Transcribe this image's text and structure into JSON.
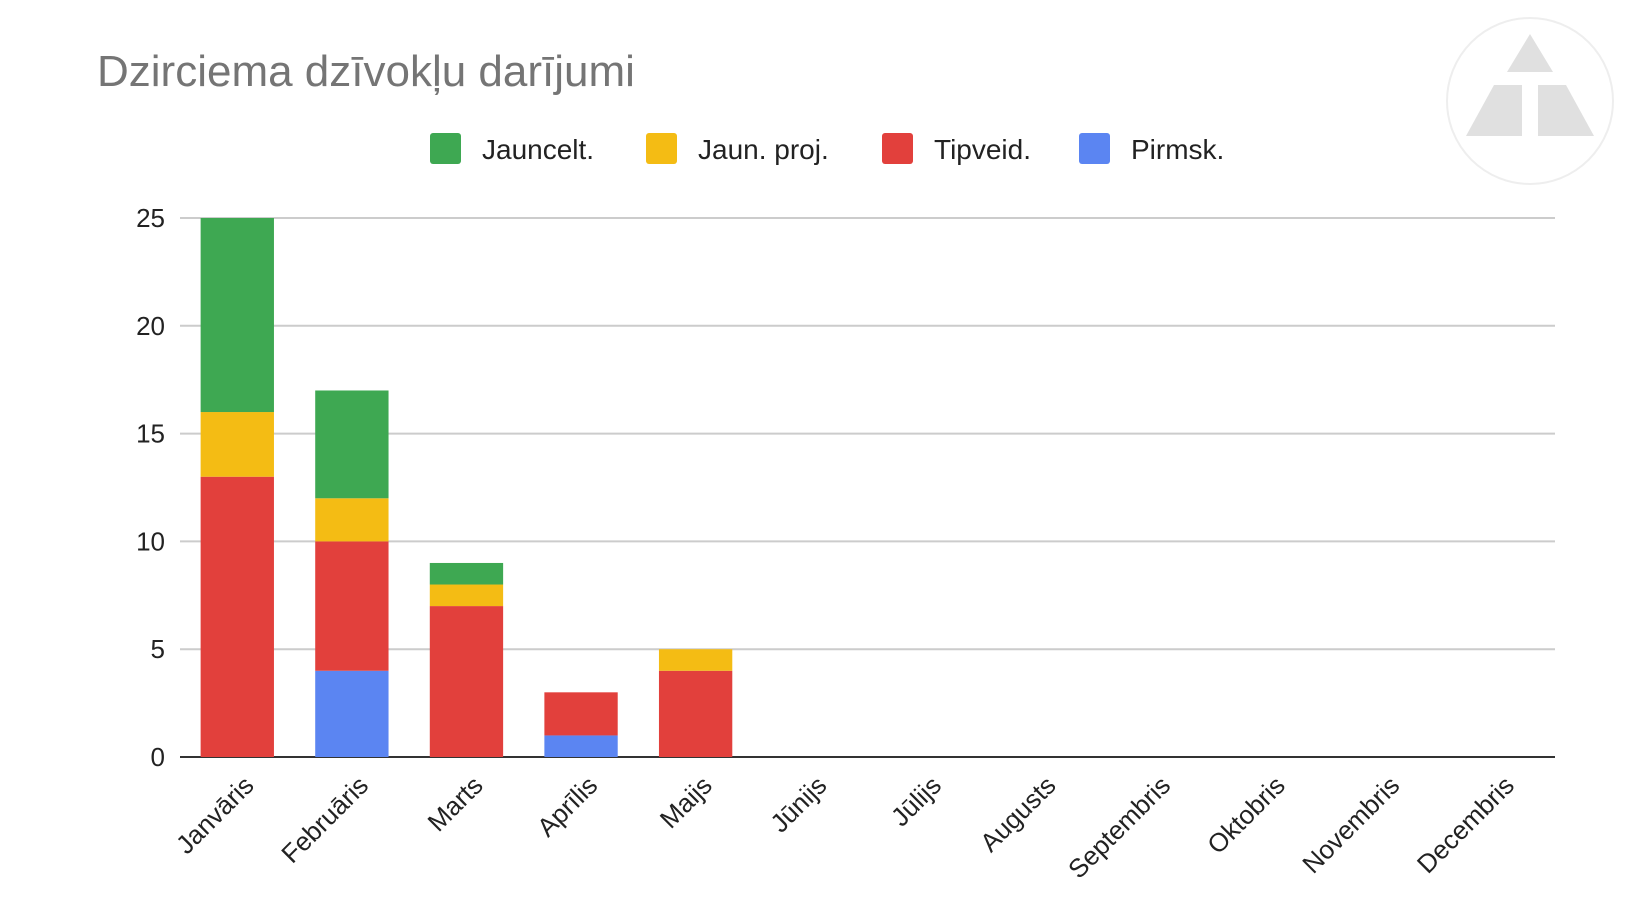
{
  "chart_data": {
    "type": "bar",
    "stacked": true,
    "title": "Dzirciema dzīvokļu darījumi",
    "xlabel": "",
    "ylabel": "",
    "categories": [
      "Janvāris",
      "Februāris",
      "Marts",
      "Aprīlis",
      "Maijs",
      "Jūnijs",
      "Jūlijs",
      "Augusts",
      "Septembris",
      "Oktobris",
      "Novembris",
      "Decembris"
    ],
    "series": [
      {
        "name": "Pirmsk.",
        "color": "#5b85f2",
        "values": [
          0,
          4,
          0,
          1,
          0,
          0,
          0,
          0,
          0,
          0,
          0,
          0
        ]
      },
      {
        "name": "Tipveid.",
        "color": "#e2403c",
        "values": [
          13,
          6,
          7,
          2,
          4,
          0,
          0,
          0,
          0,
          0,
          0,
          0
        ]
      },
      {
        "name": "Jaun. proj.",
        "color": "#f4bc14",
        "values": [
          3,
          2,
          1,
          0,
          1,
          0,
          0,
          0,
          0,
          0,
          0,
          0
        ]
      },
      {
        "name": "Jauncelt.",
        "color": "#3ea852",
        "values": [
          9,
          5,
          1,
          0,
          0,
          0,
          0,
          0,
          0,
          0,
          0,
          0
        ]
      }
    ],
    "legend_order": [
      "Jauncelt.",
      "Jaun. proj.",
      "Tipveid.",
      "Pirmsk."
    ],
    "legend_position": "top",
    "ylim": [
      0,
      25
    ],
    "yticks": [
      0,
      5,
      10,
      15,
      20,
      25
    ],
    "grid": true,
    "logo_icon": "triangle-logo-icon"
  }
}
